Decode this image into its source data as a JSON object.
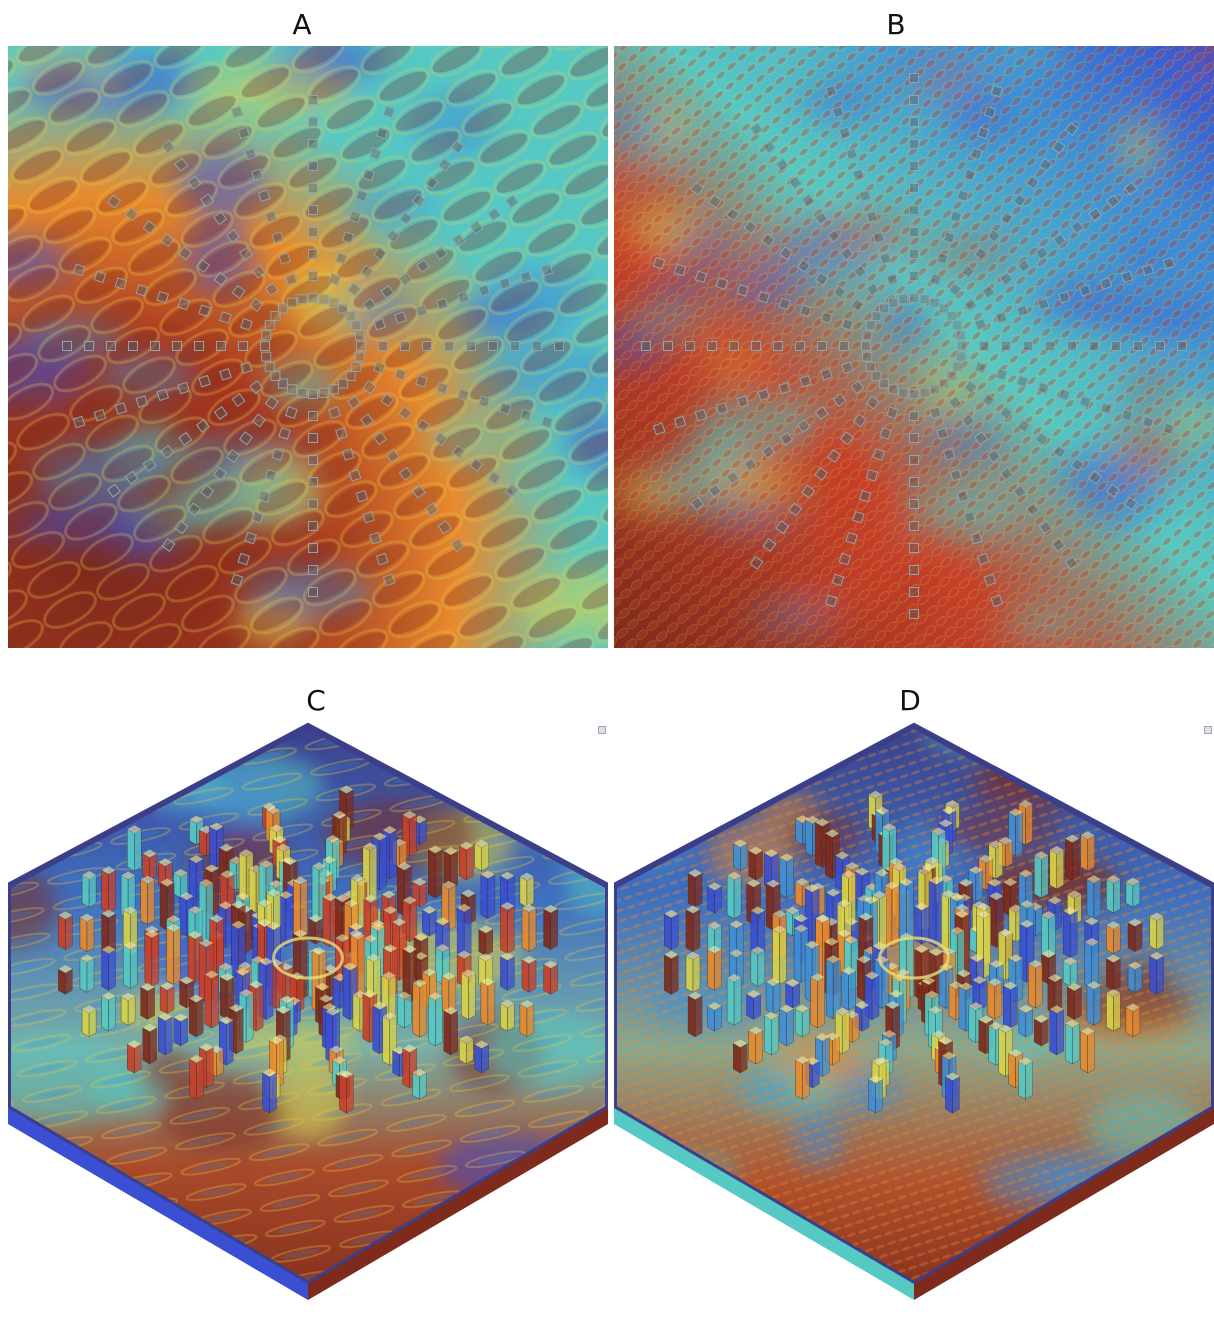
{
  "labels": {
    "a": "A",
    "b": "B",
    "c": "C",
    "d": "D"
  },
  "colors": {
    "deep_red": "#7e2a1c",
    "red": "#c8402a",
    "orange": "#e88a2e",
    "yellow": "#d9d24a",
    "cyan": "#57c9c4",
    "light_blue": "#3f8fd6",
    "blue": "#3a4fd1",
    "navy": "#3b3f8a"
  },
  "panels": [
    {
      "id": "A",
      "view": "top",
      "pattern": "coarse"
    },
    {
      "id": "B",
      "view": "top",
      "pattern": "fine"
    },
    {
      "id": "C",
      "view": "isometric",
      "pattern": "coarse"
    },
    {
      "id": "D",
      "view": "isometric",
      "pattern": "fine"
    }
  ]
}
